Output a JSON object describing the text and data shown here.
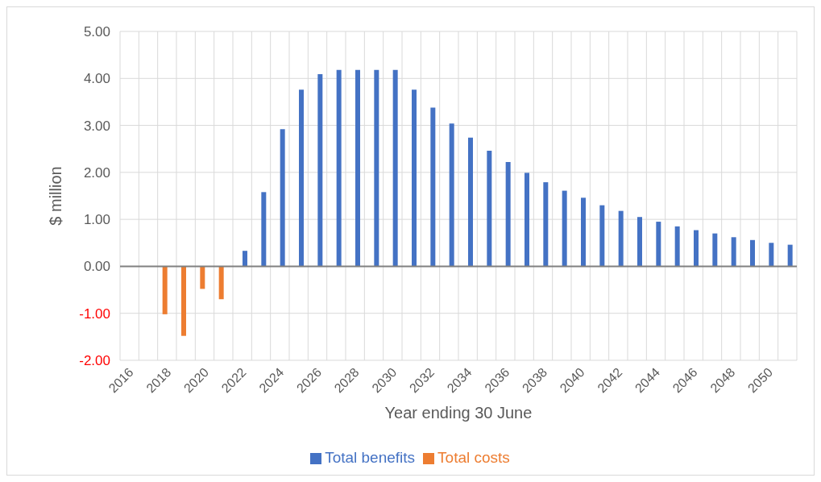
{
  "chart_data": {
    "type": "bar",
    "categories": [
      "2016",
      null,
      "2018",
      null,
      "2020",
      null,
      "2022",
      null,
      "2024",
      null,
      "2026",
      null,
      "2028",
      null,
      "2030",
      null,
      "2032",
      null,
      "2034",
      null,
      "2036",
      null,
      "2038",
      null,
      "2040",
      null,
      "2042",
      null,
      "2044",
      null,
      "2046",
      null,
      "2048",
      null,
      "2050",
      null
    ],
    "series": [
      {
        "name": "Total costs",
        "color": "#ed7d31",
        "values": [
          null,
          null,
          -1.02,
          -1.48,
          -0.48,
          -0.7,
          null,
          null,
          null,
          null,
          null,
          null,
          null,
          null,
          null,
          null,
          null,
          null,
          null,
          null,
          null,
          null,
          null,
          null,
          null,
          null,
          null,
          null,
          null,
          null,
          null,
          null,
          null,
          null,
          null,
          null
        ]
      },
      {
        "name": "Total benefits",
        "color": "#4472c4",
        "values": [
          null,
          null,
          null,
          null,
          null,
          null,
          0.33,
          1.58,
          2.92,
          3.76,
          4.09,
          4.18,
          4.18,
          4.18,
          4.18,
          3.76,
          3.38,
          3.04,
          2.74,
          2.46,
          2.22,
          1.99,
          1.79,
          1.61,
          1.46,
          1.3,
          1.18,
          1.05,
          0.95,
          0.85,
          0.77,
          0.7,
          0.62,
          0.56,
          0.5,
          0.46
        ]
      }
    ],
    "xlabel": "Year ending 30 June",
    "ylabel": "$ million",
    "ylim": [
      -2,
      5
    ],
    "yticks": [
      {
        "value": -2,
        "label": "-2.00"
      },
      {
        "value": -1,
        "label": "-1.00"
      },
      {
        "value": 0,
        "label": "0.00"
      },
      {
        "value": 1,
        "label": "1.00"
      },
      {
        "value": 2,
        "label": "2.00"
      },
      {
        "value": 3,
        "label": "3.00"
      },
      {
        "value": 4,
        "label": "4.00"
      },
      {
        "value": 5,
        "label": "5.00"
      }
    ],
    "grid": true,
    "legend": "bottom"
  }
}
